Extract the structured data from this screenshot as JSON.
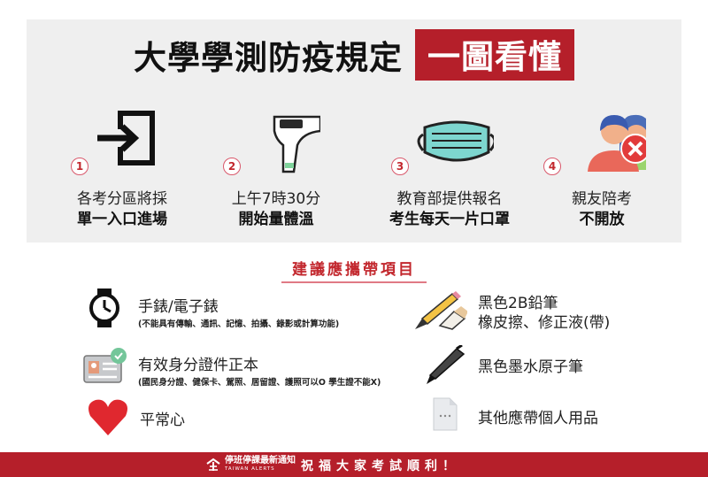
{
  "title": {
    "main": "大學學測防疫規定",
    "tag": "一圖看懂"
  },
  "colors": {
    "brand_red": "#b51f2a",
    "panel_gray": "#efefef",
    "number_circle": "#d9586b"
  },
  "steps": [
    {
      "number": "1",
      "line1": "各考分區將採",
      "line2": "單一入口進場",
      "icon": "entrance-icon"
    },
    {
      "number": "2",
      "line1": "上午7時30分",
      "line2": "開始量體溫",
      "icon": "thermometer-icon"
    },
    {
      "number": "3",
      "line1": "教育部提供報名",
      "line2": "考生每天一片口罩",
      "icon": "mask-icon"
    },
    {
      "number": "4",
      "line1": "親友陪考",
      "line2": "不開放",
      "icon": "no-companion-icon"
    }
  ],
  "section": {
    "title": "建議應攜帶項目"
  },
  "items": {
    "watch": {
      "label": "手錶/電子錶",
      "note": "(不能具有傳輸、通訊、記憶、拍攝、錄影或計算功能)",
      "icon": "watch-icon"
    },
    "pencil": {
      "label1": "黑色2B鉛筆",
      "label2": "橡皮擦、修正液(帶)",
      "icon": "pencil-eraser-icon"
    },
    "id": {
      "label": "有效身分證件正本",
      "note": "(國民身分證、健保卡、駕照、居留證、護照可以O 學生證不能X)",
      "icon": "id-card-icon"
    },
    "pen": {
      "label": "黑色墨水原子筆",
      "icon": "pen-icon"
    },
    "heart": {
      "label": "平常心",
      "icon": "heart-icon"
    },
    "other": {
      "label": "其他應帶個人用品",
      "icon": "document-icon"
    }
  },
  "footer": {
    "brand": "停班停課最新通知",
    "brand_en": "TAIWAN ALERTS",
    "slogan": "祝福大家考試順利！",
    "icon": "taiwan-alerts-logo-icon"
  }
}
